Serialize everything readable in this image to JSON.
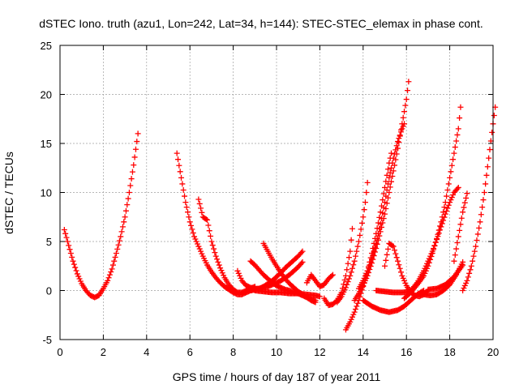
{
  "chart_data": {
    "type": "scatter",
    "title": "dSTEC Iono. truth (azu1, Lon=242, Lat=34, h=144): STEC-STEC_elemax in phase cont.",
    "xlabel": "GPS time / hours of day 187 of year 2011",
    "ylabel": "dSTEC  / TECUs",
    "xlim": [
      0,
      20
    ],
    "ylim": [
      -5,
      25
    ],
    "xticks": [
      0,
      2,
      4,
      6,
      8,
      10,
      12,
      14,
      16,
      18,
      20
    ],
    "yticks": [
      -5,
      0,
      5,
      10,
      15,
      20,
      25
    ],
    "grid": true,
    "marker": "+",
    "colors": {
      "series": "#ff0000"
    },
    "series": [
      {
        "points": [
          [
            0.2,
            6.2
          ],
          [
            0.4,
            4.6
          ],
          [
            0.6,
            3.0
          ],
          [
            0.8,
            1.7
          ],
          [
            1.0,
            0.7
          ],
          [
            1.2,
            0.0
          ],
          [
            1.4,
            -0.5
          ],
          [
            1.6,
            -0.7
          ],
          [
            1.8,
            -0.5
          ],
          [
            2.0,
            0.2
          ],
          [
            2.2,
            1.0
          ],
          [
            2.4,
            2.2
          ],
          [
            2.6,
            3.8
          ],
          [
            2.8,
            5.5
          ],
          [
            3.0,
            7.5
          ],
          [
            3.2,
            10.0
          ],
          [
            3.4,
            12.8
          ],
          [
            3.6,
            16.0
          ]
        ]
      },
      {
        "points": [
          [
            5.4,
            14.0
          ],
          [
            5.6,
            11.5
          ],
          [
            5.8,
            9.0
          ],
          [
            6.0,
            7.0
          ],
          [
            6.2,
            5.5
          ],
          [
            6.4,
            4.5
          ],
          [
            6.6,
            3.5
          ],
          [
            6.8,
            2.6
          ],
          [
            7.0,
            1.9
          ],
          [
            7.2,
            1.3
          ],
          [
            7.4,
            0.8
          ],
          [
            7.6,
            0.4
          ],
          [
            7.8,
            0.1
          ],
          [
            8.0,
            -0.2
          ],
          [
            8.2,
            -0.4
          ],
          [
            8.4,
            -0.4
          ],
          [
            8.6,
            -0.2
          ],
          [
            8.8,
            0.0
          ],
          [
            9.0,
            0.1
          ]
        ]
      },
      {
        "points": [
          [
            6.4,
            9.3
          ],
          [
            6.6,
            7.5
          ],
          [
            6.8,
            7.2
          ],
          [
            7.0,
            5.0
          ],
          [
            7.2,
            3.5
          ],
          [
            7.4,
            2.3
          ],
          [
            7.6,
            1.3
          ],
          [
            7.8,
            0.6
          ],
          [
            8.0,
            0.1
          ],
          [
            8.2,
            -0.2
          ],
          [
            8.4,
            -0.2
          ],
          [
            8.6,
            0.0
          ],
          [
            8.8,
            0.2
          ],
          [
            9.0,
            0.4
          ]
        ]
      },
      {
        "points": [
          [
            8.2,
            2.0
          ],
          [
            8.4,
            1.0
          ],
          [
            8.6,
            0.5
          ],
          [
            8.8,
            0.3
          ],
          [
            9.0,
            0.2
          ],
          [
            9.2,
            0.2
          ],
          [
            9.4,
            0.3
          ],
          [
            9.6,
            0.4
          ],
          [
            9.8,
            0.6
          ],
          [
            10.0,
            0.8
          ],
          [
            10.2,
            1.0
          ],
          [
            10.4,
            1.3
          ],
          [
            10.6,
            1.6
          ],
          [
            10.8,
            2.0
          ],
          [
            11.0,
            2.4
          ],
          [
            11.2,
            2.9
          ]
        ]
      },
      {
        "points": [
          [
            8.8,
            0.0
          ],
          [
            9.0,
            0.1
          ],
          [
            9.2,
            0.2
          ],
          [
            9.4,
            0.4
          ],
          [
            9.6,
            0.7
          ],
          [
            9.8,
            1.0
          ],
          [
            10.0,
            1.4
          ],
          [
            10.2,
            1.8
          ],
          [
            10.4,
            2.3
          ],
          [
            10.6,
            2.7
          ],
          [
            10.8,
            3.1
          ],
          [
            11.0,
            3.5
          ],
          [
            11.2,
            4.0
          ]
        ]
      },
      {
        "points": [
          [
            8.8,
            3.0
          ],
          [
            9.0,
            2.6
          ],
          [
            9.2,
            2.1
          ],
          [
            9.4,
            1.6
          ],
          [
            9.6,
            1.2
          ],
          [
            9.8,
            0.8
          ],
          [
            10.0,
            0.5
          ],
          [
            10.2,
            0.3
          ],
          [
            10.4,
            0.1
          ],
          [
            10.6,
            0.0
          ],
          [
            10.8,
            -0.2
          ],
          [
            11.0,
            -0.3
          ],
          [
            11.2,
            -0.5
          ],
          [
            11.4,
            -0.7
          ],
          [
            11.6,
            -0.9
          ],
          [
            11.8,
            -1.0
          ]
        ]
      },
      {
        "points": [
          [
            9.4,
            4.8
          ],
          [
            9.6,
            4.0
          ],
          [
            9.8,
            3.2
          ],
          [
            10.0,
            2.5
          ],
          [
            10.2,
            1.8
          ],
          [
            10.4,
            1.2
          ],
          [
            10.6,
            0.7
          ],
          [
            10.8,
            0.3
          ],
          [
            11.0,
            -0.1
          ],
          [
            11.2,
            -0.4
          ],
          [
            11.4,
            -0.7
          ],
          [
            11.6,
            -1.0
          ],
          [
            11.8,
            -1.2
          ]
        ]
      },
      {
        "points": [
          [
            9.0,
            0.0
          ],
          [
            9.4,
            -0.1
          ],
          [
            9.8,
            -0.2
          ],
          [
            10.2,
            -0.2
          ],
          [
            10.6,
            -0.3
          ],
          [
            11.0,
            -0.3
          ],
          [
            11.4,
            -0.4
          ],
          [
            11.8,
            -0.5
          ],
          [
            12.0,
            -0.6
          ]
        ]
      },
      {
        "points": [
          [
            11.4,
            0.8
          ],
          [
            11.6,
            1.6
          ],
          [
            11.8,
            1.0
          ],
          [
            12.0,
            0.4
          ],
          [
            12.2,
            0.6
          ],
          [
            12.4,
            1.2
          ],
          [
            12.6,
            1.6
          ]
        ]
      },
      {
        "points": [
          [
            12.2,
            -0.8
          ],
          [
            12.4,
            -1.5
          ],
          [
            12.6,
            -1.4
          ],
          [
            12.8,
            -1.0
          ],
          [
            13.0,
            -0.2
          ],
          [
            13.2,
            1.5
          ],
          [
            13.4,
            4.0
          ],
          [
            13.5,
            6.3
          ]
        ]
      },
      {
        "points": [
          [
            12.8,
            -1.2
          ],
          [
            13.0,
            -0.6
          ],
          [
            13.2,
            0.3
          ],
          [
            13.4,
            1.5
          ],
          [
            13.6,
            3.0
          ],
          [
            13.8,
            5.0
          ],
          [
            14.0,
            7.5
          ],
          [
            14.1,
            9.0
          ],
          [
            14.2,
            11.0
          ]
        ]
      },
      {
        "points": [
          [
            13.2,
            -4.0
          ],
          [
            13.4,
            -3.2
          ],
          [
            13.6,
            -2.2
          ],
          [
            13.8,
            -1.0
          ],
          [
            14.0,
            0.4
          ],
          [
            14.2,
            2.0
          ],
          [
            14.4,
            3.8
          ],
          [
            14.6,
            5.8
          ],
          [
            14.8,
            8.0
          ],
          [
            15.0,
            10.5
          ],
          [
            15.2,
            13.0
          ],
          [
            15.3,
            14.0
          ]
        ]
      },
      {
        "points": [
          [
            13.6,
            -1.0
          ],
          [
            13.8,
            -0.3
          ],
          [
            14.0,
            0.5
          ],
          [
            14.2,
            1.5
          ],
          [
            14.4,
            2.8
          ],
          [
            14.6,
            4.3
          ],
          [
            14.8,
            6.0
          ],
          [
            15.0,
            7.8
          ],
          [
            15.2,
            10.0
          ],
          [
            15.4,
            12.2
          ],
          [
            15.6,
            14.5
          ],
          [
            15.8,
            17.0
          ],
          [
            16.0,
            19.5
          ],
          [
            16.1,
            21.3
          ]
        ]
      },
      {
        "points": [
          [
            13.8,
            0.2
          ],
          [
            14.0,
            1.0
          ],
          [
            14.2,
            2.0
          ],
          [
            14.4,
            3.2
          ],
          [
            14.6,
            4.8
          ],
          [
            14.8,
            6.8
          ],
          [
            15.0,
            9.0
          ],
          [
            15.2,
            11.5
          ],
          [
            15.4,
            13.5
          ],
          [
            15.6,
            15.2
          ],
          [
            15.8,
            16.5
          ],
          [
            15.9,
            17.0
          ]
        ]
      },
      {
        "points": [
          [
            14.0,
            -1.0
          ],
          [
            14.4,
            -1.6
          ],
          [
            14.8,
            -2.0
          ],
          [
            15.2,
            -2.2
          ],
          [
            15.6,
            -2.0
          ],
          [
            15.9,
            -1.6
          ],
          [
            16.2,
            -1.0
          ],
          [
            16.5,
            -0.4
          ],
          [
            16.8,
            0.0
          ]
        ]
      },
      {
        "points": [
          [
            14.6,
            0.0
          ],
          [
            15.0,
            -0.1
          ],
          [
            15.4,
            -0.2
          ],
          [
            15.8,
            -0.2
          ],
          [
            16.2,
            -0.1
          ]
        ]
      },
      {
        "points": [
          [
            15.0,
            2.5
          ],
          [
            15.2,
            4.8
          ],
          [
            15.4,
            4.5
          ],
          [
            15.6,
            3.0
          ],
          [
            15.8,
            1.5
          ],
          [
            16.0,
            0.5
          ],
          [
            16.2,
            -0.2
          ],
          [
            16.4,
            -0.5
          ],
          [
            16.6,
            -0.6
          ],
          [
            16.8,
            -0.4
          ],
          [
            17.0,
            0.0
          ]
        ]
      },
      {
        "points": [
          [
            15.9,
            -0.8
          ],
          [
            16.2,
            -0.2
          ],
          [
            16.5,
            0.6
          ],
          [
            16.8,
            1.5
          ],
          [
            17.0,
            2.5
          ],
          [
            17.2,
            3.8
          ],
          [
            17.4,
            5.3
          ],
          [
            17.6,
            7.0
          ],
          [
            17.8,
            9.0
          ],
          [
            18.0,
            11.5
          ],
          [
            18.2,
            14.0
          ],
          [
            18.4,
            16.5
          ],
          [
            18.5,
            18.7
          ]
        ]
      },
      {
        "points": [
          [
            16.2,
            0.0
          ],
          [
            16.5,
            0.8
          ],
          [
            16.8,
            2.0
          ],
          [
            17.0,
            3.0
          ],
          [
            17.2,
            4.0
          ],
          [
            17.4,
            5.2
          ],
          [
            17.6,
            6.5
          ],
          [
            17.8,
            7.8
          ],
          [
            18.0,
            9.0
          ],
          [
            18.2,
            10.0
          ],
          [
            18.4,
            10.5
          ]
        ]
      },
      {
        "points": [
          [
            16.8,
            -0.4
          ],
          [
            17.1,
            -0.5
          ],
          [
            17.4,
            -0.4
          ],
          [
            17.7,
            0.0
          ],
          [
            18.0,
            0.6
          ],
          [
            18.3,
            1.6
          ],
          [
            18.6,
            2.9
          ]
        ]
      },
      {
        "points": [
          [
            17.0,
            0.1
          ],
          [
            17.4,
            0.2
          ],
          [
            17.8,
            0.6
          ],
          [
            18.2,
            1.4
          ],
          [
            18.6,
            2.6
          ]
        ]
      },
      {
        "points": [
          [
            18.6,
            0.0
          ],
          [
            18.8,
            1.0
          ],
          [
            19.0,
            2.5
          ],
          [
            19.2,
            4.5
          ],
          [
            19.4,
            7.0
          ],
          [
            19.6,
            10.0
          ],
          [
            19.8,
            13.5
          ],
          [
            20.0,
            17.0
          ],
          [
            20.1,
            18.7
          ]
        ]
      },
      {
        "points": [
          [
            18.2,
            3.0
          ],
          [
            18.4,
            5.5
          ],
          [
            18.6,
            8.0
          ],
          [
            18.8,
            9.9
          ]
        ]
      }
    ]
  }
}
